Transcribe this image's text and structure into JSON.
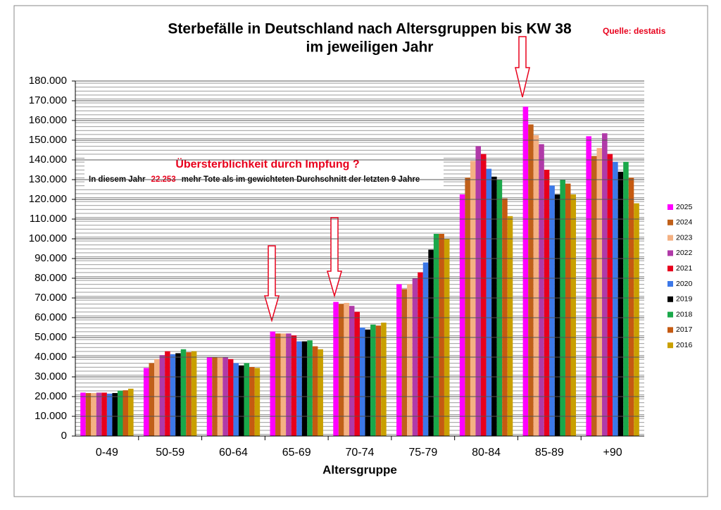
{
  "chart_data": {
    "type": "bar",
    "title": "Sterbefälle in Deutschland nach Altersgruppen bis KW 38",
    "subtitle": "im jeweiligen Jahr",
    "source": "Quelle: destatis",
    "x_label": "Altersgruppe",
    "annotations": {
      "headline": "Übersterblichkeit durch Impfung ?",
      "line_start": "In diesem Jahr",
      "line_number": "22.253",
      "line_end": "mehr Tote als im gewichteten Durchschnitt der letzten 9 Jahre"
    },
    "categories": [
      "0-49",
      "50-59",
      "60-64",
      "65-69",
      "70-74",
      "75-79",
      "80-84",
      "85-89",
      "+90"
    ],
    "series": [
      {
        "name": "2025",
        "color": "#ff00ff",
        "values": [
          22000,
          34500,
          40000,
          53000,
          68000,
          77000,
          122500,
          167000,
          152000
        ]
      },
      {
        "name": "2024",
        "color": "#c0601a",
        "values": [
          21800,
          37000,
          40000,
          52000,
          67000,
          74500,
          131000,
          158000,
          142000
        ]
      },
      {
        "name": "2023",
        "color": "#f4b183",
        "values": [
          21800,
          39000,
          40000,
          52000,
          67500,
          77000,
          139500,
          152500,
          146000
        ]
      },
      {
        "name": "2022",
        "color": "#b03aa8",
        "values": [
          22000,
          41000,
          40000,
          52000,
          66000,
          80000,
          147000,
          148000,
          153500
        ]
      },
      {
        "name": "2021",
        "color": "#e8001c",
        "values": [
          22000,
          43000,
          39000,
          51000,
          63000,
          83000,
          143000,
          135000,
          143000
        ]
      },
      {
        "name": "2020",
        "color": "#3c78e8",
        "values": [
          21500,
          41500,
          37000,
          48000,
          55000,
          88000,
          135500,
          127000,
          139000
        ]
      },
      {
        "name": "2019",
        "color": "#000000",
        "values": [
          21800,
          42000,
          35800,
          48000,
          54000,
          94500,
          131500,
          122500,
          134000
        ]
      },
      {
        "name": "2018",
        "color": "#1aa84a",
        "values": [
          23000,
          44000,
          37000,
          48500,
          56500,
          102500,
          130000,
          130000,
          139000
        ]
      },
      {
        "name": "2017",
        "color": "#c55a11",
        "values": [
          23200,
          42500,
          35000,
          45500,
          56000,
          102500,
          120500,
          128000,
          131000
        ]
      },
      {
        "name": "2016",
        "color": "#c9a000",
        "values": [
          24000,
          43000,
          34500,
          44000,
          57500,
          100000,
          111500,
          122500,
          118000
        ]
      }
    ],
    "ylim": [
      0,
      180000
    ],
    "yticks": [
      0,
      {
        "value": 10000,
        "label": "10.000"
      },
      {
        "value": 20000,
        "label": "20.000"
      },
      {
        "value": 30000,
        "label": "30.000"
      },
      {
        "value": 40000,
        "label": "40.000"
      },
      {
        "value": 50000,
        "label": "50.000"
      },
      {
        "value": 60000,
        "label": "60.000"
      },
      {
        "value": 70000,
        "label": "70.000"
      },
      {
        "value": 80000,
        "label": "80.000"
      },
      {
        "value": 90000,
        "label": "90.000"
      },
      {
        "value": 100000,
        "label": "100.000"
      },
      {
        "value": 110000,
        "label": "110.000"
      },
      {
        "value": 120000,
        "label": "120.000"
      },
      {
        "value": 130000,
        "label": "130.000"
      },
      {
        "value": 140000,
        "label": "140.000"
      },
      {
        "value": 150000,
        "label": "150.000"
      },
      {
        "value": 160000,
        "label": "160.000"
      },
      {
        "value": 170000,
        "label": "170.000"
      },
      {
        "value": 180000,
        "label": "180.000"
      }
    ],
    "grid": true,
    "legend": "right"
  }
}
